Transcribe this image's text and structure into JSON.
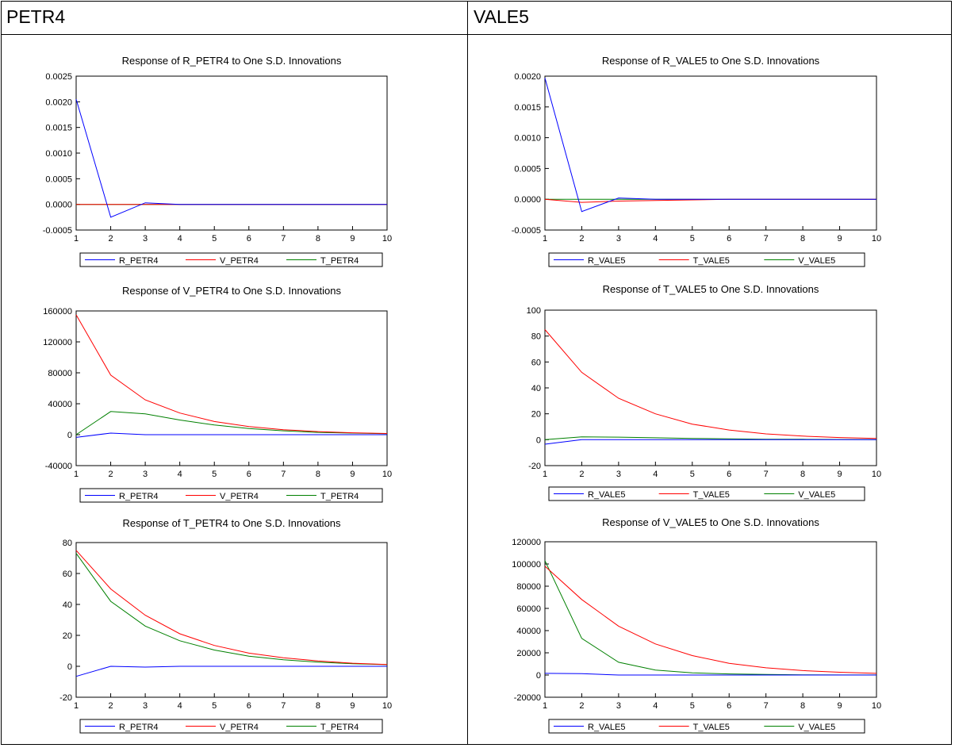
{
  "headers": {
    "left": "PETR4",
    "right": "VALE5"
  },
  "colors": {
    "blue": "#0000ff",
    "red": "#ff0000",
    "green": "#008000"
  },
  "chart_data": [
    {
      "type": "line",
      "title": "Response of R_PETR4 to One S.D. Innovations",
      "x": [
        1,
        2,
        3,
        4,
        5,
        6,
        7,
        8,
        9,
        10
      ],
      "ylim": [
        -0.0005,
        0.0025
      ],
      "yticks": [
        "0.0025",
        "0.0020",
        "0.0015",
        "0.0010",
        "0.0005",
        "0.0000",
        "-0.0005"
      ],
      "xticks": [
        "1",
        "2",
        "3",
        "4",
        "5",
        "6",
        "7",
        "8",
        "9",
        "10"
      ],
      "series": [
        {
          "name": "R_PETR4",
          "color": "#0000ff",
          "values": [
            0.00205,
            -0.00025,
            3e-05,
            0,
            0,
            0,
            0,
            0,
            0,
            0
          ]
        },
        {
          "name": "V_PETR4",
          "color": "#ff0000",
          "values": [
            0,
            0,
            0,
            0,
            0,
            0,
            0,
            0,
            0,
            0
          ]
        },
        {
          "name": "T_PETR4",
          "color": "#008000",
          "values": [
            0,
            0,
            0,
            0,
            0,
            0,
            0,
            0,
            0,
            0
          ]
        }
      ]
    },
    {
      "type": "line",
      "title": "Response of V_PETR4 to One S.D. Innovations",
      "x": [
        1,
        2,
        3,
        4,
        5,
        6,
        7,
        8,
        9,
        10
      ],
      "ylim": [
        -40000,
        160000
      ],
      "yticks": [
        "160000",
        "120000",
        "80000",
        "40000",
        "0",
        "-40000"
      ],
      "xticks": [
        "1",
        "2",
        "3",
        "4",
        "5",
        "6",
        "7",
        "8",
        "9",
        "10"
      ],
      "series": [
        {
          "name": "R_PETR4",
          "color": "#0000ff",
          "values": [
            -3500,
            2000,
            0,
            0,
            0,
            0,
            0,
            0,
            0,
            0
          ]
        },
        {
          "name": "V_PETR4",
          "color": "#ff0000",
          "values": [
            155000,
            77000,
            45000,
            28000,
            17000,
            10500,
            6500,
            4000,
            2500,
            1500
          ]
        },
        {
          "name": "T_PETR4",
          "color": "#008000",
          "values": [
            0,
            30000,
            27000,
            19000,
            12500,
            8000,
            5000,
            3000,
            2000,
            1200
          ]
        }
      ]
    },
    {
      "type": "line",
      "title": "Response of T_PETR4 to One S.D. Innovations",
      "x": [
        1,
        2,
        3,
        4,
        5,
        6,
        7,
        8,
        9,
        10
      ],
      "ylim": [
        -20,
        80
      ],
      "yticks": [
        "80",
        "60",
        "40",
        "20",
        "0",
        "-20"
      ],
      "xticks": [
        "1",
        "2",
        "3",
        "4",
        "5",
        "6",
        "7",
        "8",
        "9",
        "10"
      ],
      "series": [
        {
          "name": "R_PETR4",
          "color": "#0000ff",
          "values": [
            -6.5,
            0,
            -0.5,
            0,
            0,
            0,
            0,
            0,
            0,
            0
          ]
        },
        {
          "name": "V_PETR4",
          "color": "#ff0000",
          "values": [
            75,
            50,
            33,
            21,
            13.5,
            8.5,
            5.5,
            3.5,
            2,
            1.2
          ]
        },
        {
          "name": "T_PETR4",
          "color": "#008000",
          "values": [
            73,
            42,
            26,
            16.5,
            10.5,
            6.5,
            4.2,
            2.7,
            1.7,
            1.1
          ]
        }
      ]
    },
    {
      "type": "line",
      "title": "Response of R_VALE5 to One S.D. Innovations",
      "x": [
        1,
        2,
        3,
        4,
        5,
        6,
        7,
        8,
        9,
        10
      ],
      "ylim": [
        -0.0005,
        0.002
      ],
      "yticks": [
        "0.0020",
        "0.0015",
        "0.0010",
        "0.0005",
        "0.0000",
        "-0.0005"
      ],
      "xticks": [
        "1",
        "2",
        "3",
        "4",
        "5",
        "6",
        "7",
        "8",
        "9",
        "10"
      ],
      "series": [
        {
          "name": "R_VALE5",
          "color": "#0000ff",
          "values": [
            0.00197,
            -0.0002,
            2e-05,
            0,
            0,
            0,
            0,
            0,
            0,
            0
          ]
        },
        {
          "name": "T_VALE5",
          "color": "#ff0000",
          "values": [
            0,
            -5e-05,
            -3e-05,
            -2e-05,
            -1e-05,
            0,
            0,
            0,
            0,
            0
          ]
        },
        {
          "name": "V_VALE5",
          "color": "#008000",
          "values": [
            0,
            0,
            0,
            0,
            0,
            0,
            0,
            0,
            0,
            0
          ]
        }
      ]
    },
    {
      "type": "line",
      "title": "Response of T_VALE5 to One S.D. Innovations",
      "x": [
        1,
        2,
        3,
        4,
        5,
        6,
        7,
        8,
        9,
        10
      ],
      "ylim": [
        -20,
        100
      ],
      "yticks": [
        "100",
        "80",
        "60",
        "40",
        "20",
        "0",
        "-20"
      ],
      "xticks": [
        "1",
        "2",
        "3",
        "4",
        "5",
        "6",
        "7",
        "8",
        "9",
        "10"
      ],
      "series": [
        {
          "name": "R_VALE5",
          "color": "#0000ff",
          "values": [
            -3.5,
            0,
            0,
            0,
            0,
            0,
            0,
            0,
            0,
            0
          ]
        },
        {
          "name": "T_VALE5",
          "color": "#ff0000",
          "values": [
            85,
            52,
            32,
            20,
            12,
            7.5,
            4.5,
            2.8,
            1.7,
            1
          ]
        },
        {
          "name": "V_VALE5",
          "color": "#008000",
          "values": [
            0,
            2.2,
            2,
            1.5,
            1,
            0.7,
            0.4,
            0.3,
            0.2,
            0.1
          ]
        }
      ]
    },
    {
      "type": "line",
      "title": "Response of V_VALE5 to One S.D. Innovations",
      "x": [
        1,
        2,
        3,
        4,
        5,
        6,
        7,
        8,
        9,
        10
      ],
      "ylim": [
        -20000,
        120000
      ],
      "yticks": [
        "120000",
        "100000",
        "80000",
        "60000",
        "40000",
        "20000",
        "0",
        "-20000"
      ],
      "xticks": [
        "1",
        "2",
        "3",
        "4",
        "5",
        "6",
        "7",
        "8",
        "9",
        "10"
      ],
      "series": [
        {
          "name": "R_VALE5",
          "color": "#0000ff",
          "values": [
            1500,
            1200,
            0,
            0,
            0,
            0,
            0,
            0,
            0,
            0
          ]
        },
        {
          "name": "T_VALE5",
          "color": "#ff0000",
          "values": [
            98000,
            68000,
            44000,
            28000,
            17500,
            10500,
            6500,
            4000,
            2500,
            1500
          ]
        },
        {
          "name": "V_VALE5",
          "color": "#008000",
          "values": [
            103000,
            33000,
            11500,
            4500,
            2000,
            1000,
            500,
            200,
            100,
            50
          ]
        }
      ]
    }
  ]
}
